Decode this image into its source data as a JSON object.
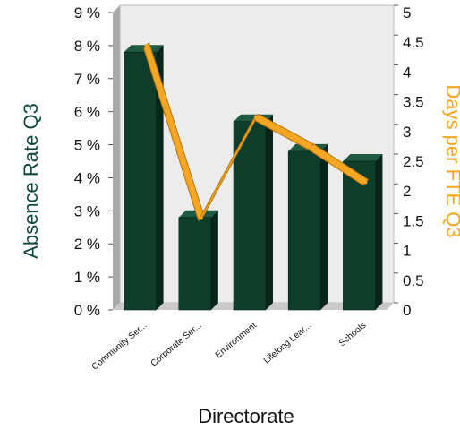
{
  "chart_data": {
    "type": "bar",
    "categories": [
      "Community Ser...",
      "Corporate Ser...",
      "Environment",
      "Lifelong Lear...",
      "Schools"
    ],
    "series": [
      {
        "axis": "left",
        "mark": "bar",
        "values": [
          7.8,
          2.8,
          5.7,
          4.8,
          4.5
        ]
      },
      {
        "axis": "right",
        "mark": "line",
        "values": [
          4.4,
          1.5,
          3.2,
          2.7,
          2.1
        ]
      }
    ],
    "xlabel": "Directorate",
    "ylabel_left": "Absence Rate Q3",
    "ylabel_right": "Days per FTE Q3",
    "ylim_left": [
      0,
      9
    ],
    "ylim_right": [
      0,
      5
    ],
    "yticks_left": [
      "0 %",
      "1 %",
      "2 %",
      "3 %",
      "4 %",
      "5 %",
      "6 %",
      "7 %",
      "8 %",
      "9 %"
    ],
    "yticks_right": [
      "0",
      "0.5",
      "1",
      "1.5",
      "2",
      "2.5",
      "3",
      "3.5",
      "4",
      "4.5",
      "5"
    ],
    "grid": false,
    "colors": {
      "bar_front": "#0e3d2b",
      "bar_top": "#1e5a41",
      "bar_side": "#072519",
      "line": "#f5a623",
      "line_edge": "#b8740a",
      "wall": "#ececec",
      "floor": "#c9c9c9",
      "left_label": "#0e4a35",
      "right_label": "#f5a623",
      "text": "#111111"
    }
  }
}
